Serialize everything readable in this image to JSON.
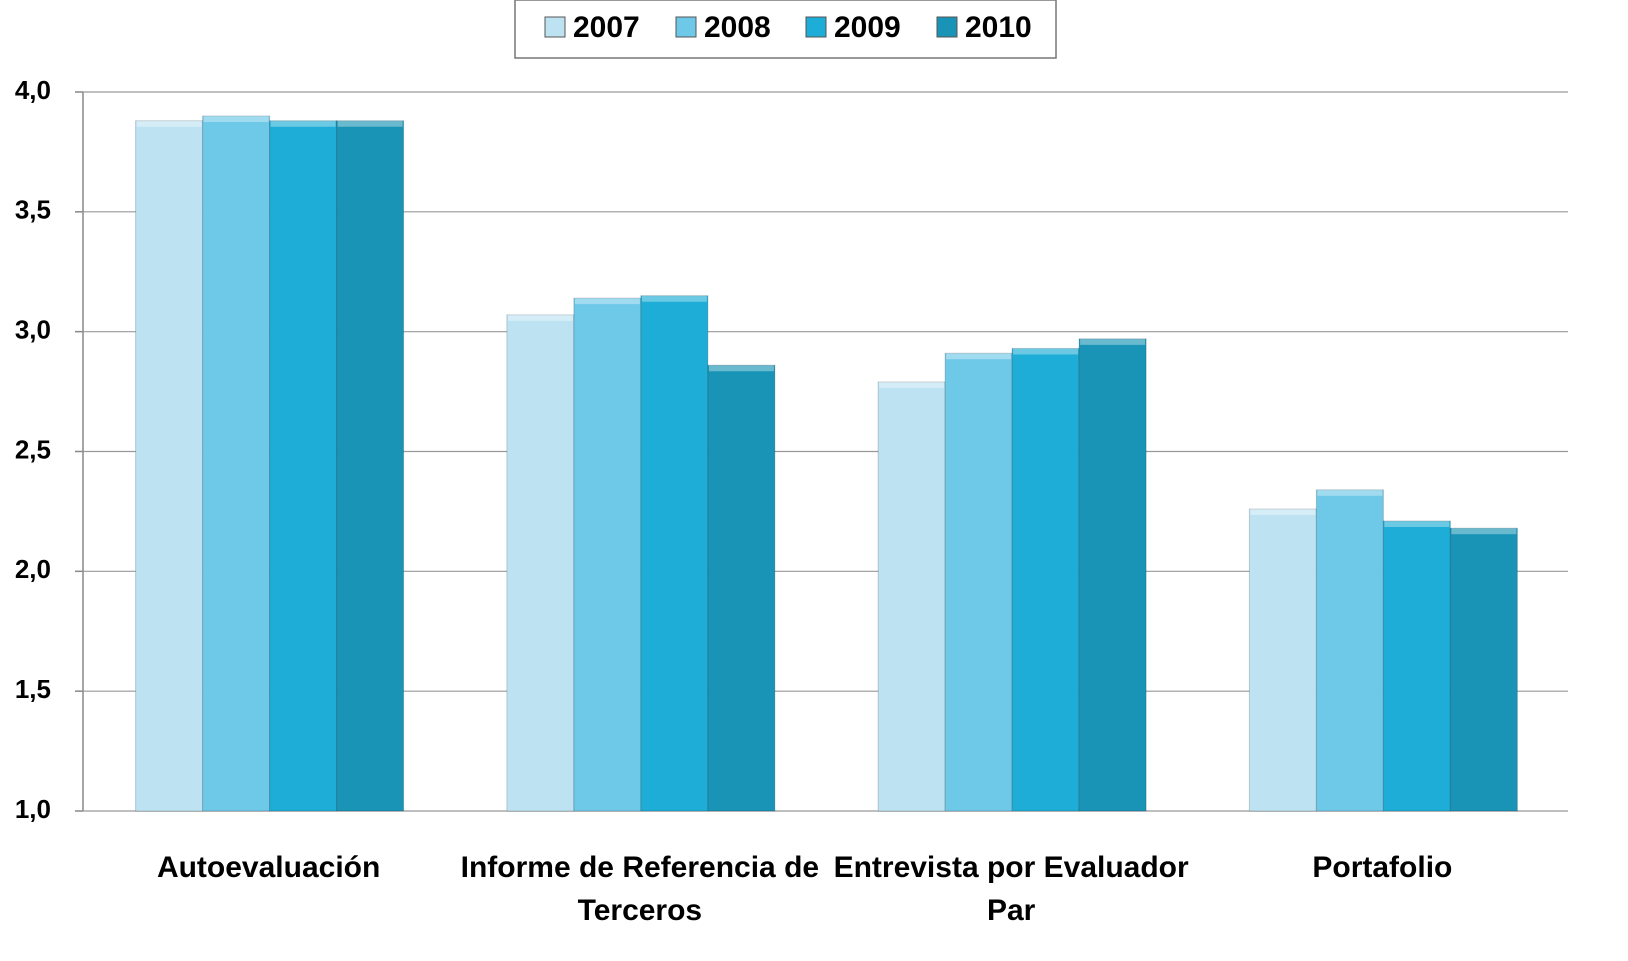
{
  "chart_data": {
    "type": "bar",
    "categories": [
      "Autoevaluación",
      "Informe de Referencia de Terceros",
      "Entrevista por Evaluador Par",
      "Portafolio"
    ],
    "series": [
      {
        "name": "2007",
        "color": "#bde3f3",
        "values": [
          3.88,
          3.07,
          2.79,
          2.26
        ]
      },
      {
        "name": "2008",
        "color": "#6ec8e8",
        "values": [
          3.9,
          3.14,
          2.91,
          2.34
        ]
      },
      {
        "name": "2009",
        "color": "#1eadd6",
        "values": [
          3.88,
          3.15,
          2.93,
          2.21
        ]
      },
      {
        "name": "2010",
        "color": "#1a94b6",
        "values": [
          3.88,
          2.86,
          2.97,
          2.18
        ]
      }
    ],
    "ylim": [
      1,
      4
    ],
    "yticks": [
      {
        "value": 1,
        "label": "1,0"
      },
      {
        "value": 1.5,
        "label": "1,5"
      },
      {
        "value": 2,
        "label": "2,0"
      },
      {
        "value": 2.5,
        "label": "2,5"
      },
      {
        "value": 3,
        "label": "3,0"
      },
      {
        "value": 3.5,
        "label": "3,5"
      },
      {
        "value": 4,
        "label": "4,0"
      }
    ],
    "grid": true,
    "legend": "top"
  }
}
